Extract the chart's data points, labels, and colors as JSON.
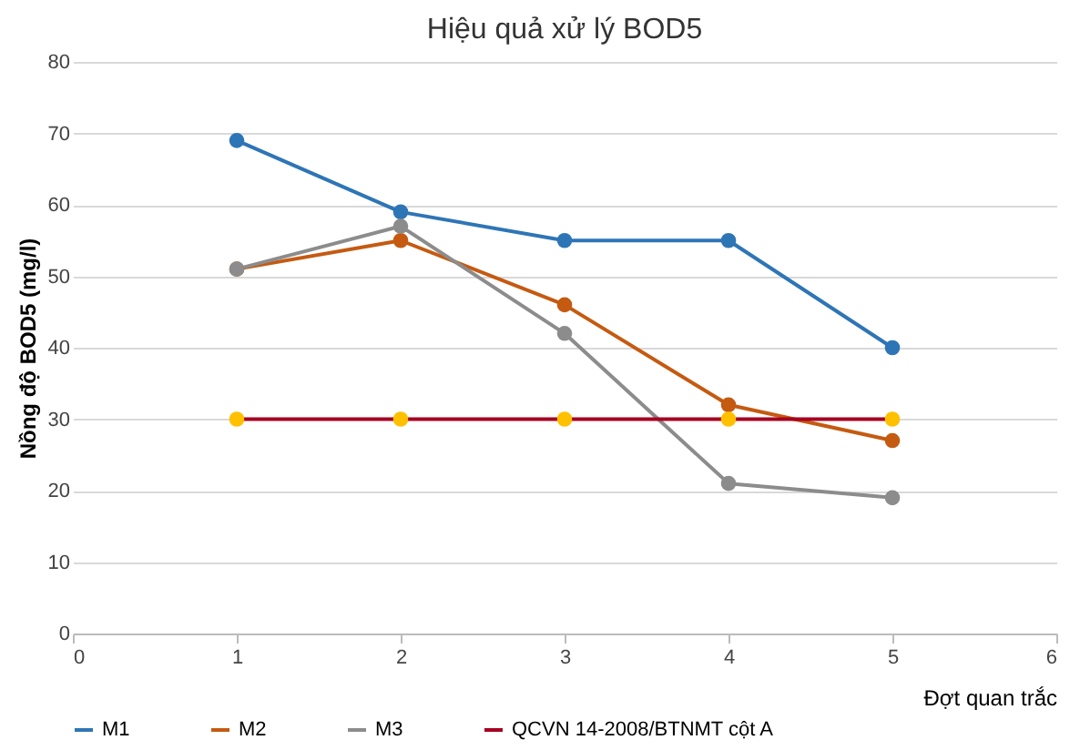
{
  "chart_data": {
    "type": "line",
    "title": "Hiệu quả xử lý BOD5",
    "xlabel": "Đợt quan trắc",
    "ylabel": "Nồng độ BOD5 (mg/l)",
    "x": [
      1,
      2,
      3,
      4,
      5
    ],
    "series": [
      {
        "name": "M1",
        "color": "#2e75b6",
        "values": [
          69,
          59,
          55,
          55,
          40
        ]
      },
      {
        "name": "M2",
        "color": "#c55a11",
        "values": [
          51,
          55,
          46,
          32,
          27
        ]
      },
      {
        "name": "M3",
        "color": "#8c8c8c",
        "values": [
          51,
          57,
          42,
          21,
          19
        ]
      },
      {
        "name": "QCVN 14-2008/BTNMT cột A",
        "color": "#a50021",
        "colors": [
          "#ffc000",
          "#ffc000",
          "#ffc000",
          "#ffc000",
          "#ffc000"
        ],
        "values": [
          30,
          30,
          30,
          30,
          30
        ]
      }
    ],
    "xlim": [
      0,
      6
    ],
    "xticks": [
      0,
      1,
      2,
      3,
      4,
      5,
      6
    ],
    "ylim": [
      0,
      80
    ],
    "yticks": [
      0,
      10,
      20,
      30,
      40,
      50,
      60,
      70,
      80
    ],
    "grid": "y",
    "legend": "bottom",
    "marker": "circle",
    "line_style": "solid"
  }
}
